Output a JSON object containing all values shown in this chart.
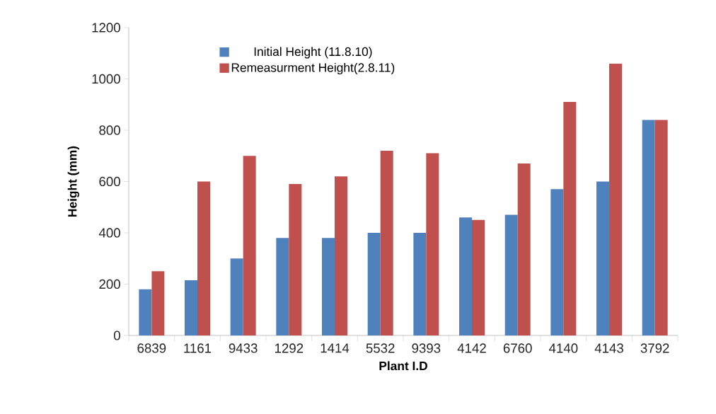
{
  "chart_data": {
    "type": "bar",
    "xlabel": "Plant I.D",
    "ylabel": "Height (mm)",
    "categories": [
      "6839",
      "1161",
      "9433",
      "1292",
      "1414",
      "5532",
      "9393",
      "4142",
      "6760",
      "4140",
      "4143",
      "3792"
    ],
    "series": [
      {
        "name": "Initial Height (11.8.10)",
        "color": "#4f81bd",
        "values": [
          180,
          215,
          300,
          380,
          380,
          400,
          400,
          460,
          470,
          570,
          600,
          840
        ]
      },
      {
        "name": "Remeasurment Height(2.8.11)",
        "color": "#c0504d",
        "values": [
          250,
          600,
          700,
          590,
          620,
          720,
          710,
          450,
          670,
          910,
          1060,
          840
        ]
      }
    ],
    "ylim": [
      0,
      1200
    ],
    "yticks": [
      0,
      200,
      400,
      600,
      800,
      1000,
      1200
    ],
    "grid": false,
    "legend": "top left"
  }
}
